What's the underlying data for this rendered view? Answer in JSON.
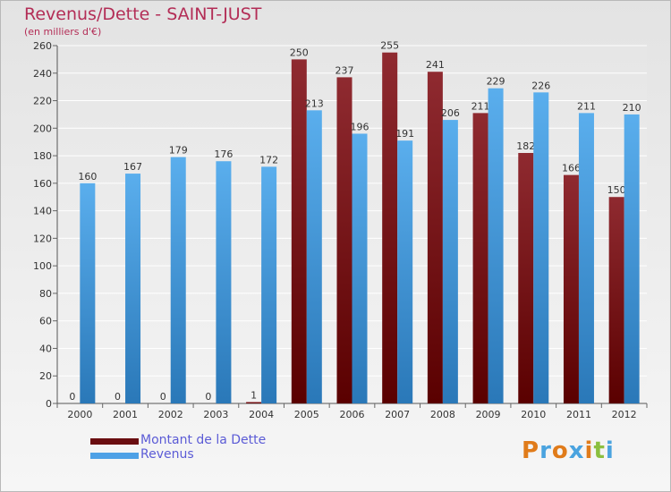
{
  "chart_data": {
    "type": "bar",
    "title": "Revenus/Dette - SAINT-JUST",
    "subtitle": "(en milliers d'€)",
    "categories": [
      "2000",
      "2001",
      "2002",
      "2003",
      "2004",
      "2005",
      "2006",
      "2007",
      "2008",
      "2009",
      "2010",
      "2011",
      "2012"
    ],
    "series": [
      {
        "name": "Montant de la Dette",
        "color": "#7a1518",
        "values": [
          0,
          0,
          0,
          0,
          1,
          250,
          237,
          255,
          241,
          211,
          182,
          166,
          150
        ]
      },
      {
        "name": "Revenus",
        "color": "#4ea1e6",
        "values": [
          160,
          167,
          179,
          176,
          172,
          213,
          196,
          191,
          206,
          229,
          226,
          211,
          210
        ]
      }
    ],
    "ylim": [
      0,
      260
    ],
    "yticks": [
      0,
      20,
      40,
      60,
      80,
      100,
      120,
      140,
      160,
      180,
      200,
      220,
      240,
      260
    ],
    "grid": true,
    "legend_position": "bottom-left"
  },
  "legend": {
    "items": [
      {
        "label": "Montant de la Dette",
        "color": "#6a0d10"
      },
      {
        "label": "Revenus",
        "color": "#4ea1e6"
      }
    ]
  },
  "brand": {
    "logo_text": "Proxiti",
    "logo_colors": [
      "#e07b1a",
      "#4aa3df",
      "#e07b1a",
      "#4aa3df",
      "#e07b1a",
      "#8bbf3f",
      "#4aa3df"
    ]
  }
}
